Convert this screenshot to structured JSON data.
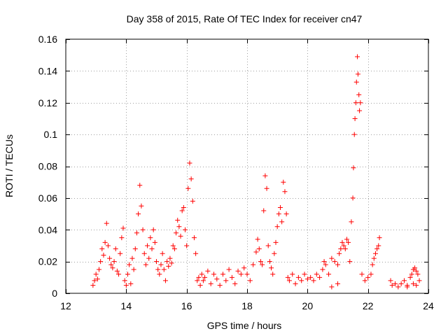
{
  "chart_data": {
    "type": "scatter",
    "title": "Day 358 of 2015, Rate Of TEC Index for receiver cn47",
    "xlabel": "GPS time / hours",
    "ylabel": "ROTI / TECUs",
    "xlim": [
      12,
      24
    ],
    "ylim": [
      0,
      0.16
    ],
    "xticks": [
      12,
      14,
      16,
      18,
      20,
      22,
      24
    ],
    "xtick_labels": [
      "12",
      "14",
      "16",
      "18",
      "20",
      "22",
      "24"
    ],
    "yticks": [
      0,
      0.02,
      0.04,
      0.06,
      0.08,
      0.1,
      0.12,
      0.14,
      0.16
    ],
    "ytick_labels": [
      "0",
      "0.02",
      "0.04",
      "0.06",
      "0.08",
      "0.1",
      "0.12",
      "0.14",
      "0.16"
    ],
    "grid": true,
    "marker": "plus",
    "color": "#ff0000",
    "series": [
      {
        "name": "ROTI",
        "points": [
          [
            12.9,
            0.005
          ],
          [
            12.95,
            0.008
          ],
          [
            13.0,
            0.012
          ],
          [
            13.05,
            0.009
          ],
          [
            13.1,
            0.015
          ],
          [
            13.15,
            0.02
          ],
          [
            13.2,
            0.028
          ],
          [
            13.25,
            0.024
          ],
          [
            13.3,
            0.032
          ],
          [
            13.35,
            0.044
          ],
          [
            13.4,
            0.03
          ],
          [
            13.45,
            0.022
          ],
          [
            13.5,
            0.018
          ],
          [
            13.55,
            0.016
          ],
          [
            13.6,
            0.02
          ],
          [
            13.65,
            0.028
          ],
          [
            13.7,
            0.014
          ],
          [
            13.75,
            0.012
          ],
          [
            13.8,
            0.025
          ],
          [
            13.85,
            0.035
          ],
          [
            13.9,
            0.041
          ],
          [
            13.95,
            0.008
          ],
          [
            14.0,
            0.005
          ],
          [
            14.05,
            0.012
          ],
          [
            14.1,
            0.018
          ],
          [
            14.15,
            0.006
          ],
          [
            14.2,
            0.022
          ],
          [
            14.25,
            0.015
          ],
          [
            14.3,
            0.028
          ],
          [
            14.35,
            0.038
          ],
          [
            14.4,
            0.05
          ],
          [
            14.45,
            0.068
          ],
          [
            14.5,
            0.055
          ],
          [
            14.55,
            0.04
          ],
          [
            14.6,
            0.025
          ],
          [
            14.65,
            0.018
          ],
          [
            14.7,
            0.03
          ],
          [
            14.75,
            0.022
          ],
          [
            14.8,
            0.035
          ],
          [
            14.85,
            0.028
          ],
          [
            14.9,
            0.04
          ],
          [
            14.95,
            0.032
          ],
          [
            15.0,
            0.02
          ],
          [
            15.05,
            0.015
          ],
          [
            15.1,
            0.012
          ],
          [
            15.15,
            0.018
          ],
          [
            15.2,
            0.025
          ],
          [
            15.25,
            0.015
          ],
          [
            15.3,
            0.008
          ],
          [
            15.35,
            0.02
          ],
          [
            15.4,
            0.017
          ],
          [
            15.45,
            0.022
          ],
          [
            15.5,
            0.019
          ],
          [
            15.55,
            0.03
          ],
          [
            15.6,
            0.028
          ],
          [
            15.65,
            0.038
          ],
          [
            15.7,
            0.046
          ],
          [
            15.75,
            0.042
          ],
          [
            15.8,
            0.036
          ],
          [
            15.85,
            0.052
          ],
          [
            15.9,
            0.054
          ],
          [
            15.95,
            0.04
          ],
          [
            16.0,
            0.03
          ],
          [
            16.05,
            0.066
          ],
          [
            16.1,
            0.082
          ],
          [
            16.15,
            0.072
          ],
          [
            16.2,
            0.058
          ],
          [
            16.25,
            0.035
          ],
          [
            16.3,
            0.025
          ],
          [
            16.35,
            0.008
          ],
          [
            16.4,
            0.01
          ],
          [
            16.45,
            0.005
          ],
          [
            16.5,
            0.012
          ],
          [
            16.55,
            0.008
          ],
          [
            16.6,
            0.01
          ],
          [
            16.7,
            0.014
          ],
          [
            16.8,
            0.006
          ],
          [
            16.9,
            0.012
          ],
          [
            17.0,
            0.009
          ],
          [
            17.1,
            0.005
          ],
          [
            17.2,
            0.012
          ],
          [
            17.3,
            0.008
          ],
          [
            17.4,
            0.015
          ],
          [
            17.5,
            0.01
          ],
          [
            17.6,
            0.006
          ],
          [
            17.7,
            0.014
          ],
          [
            17.8,
            0.012
          ],
          [
            17.9,
            0.016
          ],
          [
            18.0,
            0.012
          ],
          [
            18.1,
            0.008
          ],
          [
            18.2,
            0.018
          ],
          [
            18.3,
            0.026
          ],
          [
            18.35,
            0.034
          ],
          [
            18.4,
            0.028
          ],
          [
            18.45,
            0.02
          ],
          [
            18.5,
            0.018
          ],
          [
            18.55,
            0.052
          ],
          [
            18.6,
            0.074
          ],
          [
            18.65,
            0.066
          ],
          [
            18.7,
            0.03
          ],
          [
            18.75,
            0.02
          ],
          [
            18.8,
            0.016
          ],
          [
            18.85,
            0.012
          ],
          [
            18.9,
            0.025
          ],
          [
            18.95,
            0.032
          ],
          [
            19.0,
            0.042
          ],
          [
            19.05,
            0.05
          ],
          [
            19.1,
            0.054
          ],
          [
            19.15,
            0.045
          ],
          [
            19.2,
            0.07
          ],
          [
            19.25,
            0.064
          ],
          [
            19.3,
            0.05
          ],
          [
            19.35,
            0.01
          ],
          [
            19.4,
            0.008
          ],
          [
            19.5,
            0.012
          ],
          [
            19.6,
            0.006
          ],
          [
            19.7,
            0.01
          ],
          [
            19.8,
            0.008
          ],
          [
            19.9,
            0.012
          ],
          [
            20.0,
            0.009
          ],
          [
            20.1,
            0.01
          ],
          [
            20.2,
            0.008
          ],
          [
            20.3,
            0.012
          ],
          [
            20.4,
            0.01
          ],
          [
            20.5,
            0.015
          ],
          [
            20.55,
            0.02
          ],
          [
            20.6,
            0.018
          ],
          [
            20.7,
            0.012
          ],
          [
            20.8,
            0.022
          ],
          [
            20.9,
            0.02
          ],
          [
            21.0,
            0.018
          ],
          [
            21.05,
            0.025
          ],
          [
            21.1,
            0.028
          ],
          [
            21.15,
            0.032
          ],
          [
            21.2,
            0.03
          ],
          [
            21.25,
            0.028
          ],
          [
            21.3,
            0.034
          ],
          [
            21.35,
            0.032
          ],
          [
            21.4,
            0.02
          ],
          [
            21.45,
            0.045
          ],
          [
            21.5,
            0.06
          ],
          [
            21.52,
            0.079
          ],
          [
            21.55,
            0.1
          ],
          [
            21.57,
            0.11
          ],
          [
            21.6,
            0.12
          ],
          [
            21.62,
            0.133
          ],
          [
            21.65,
            0.149
          ],
          [
            21.67,
            0.138
          ],
          [
            21.7,
            0.125
          ],
          [
            21.72,
            0.115
          ],
          [
            21.75,
            0.12
          ],
          [
            21.8,
            0.012
          ],
          [
            21.9,
            0.008
          ],
          [
            22.0,
            0.01
          ],
          [
            22.1,
            0.012
          ],
          [
            22.15,
            0.018
          ],
          [
            22.2,
            0.022
          ],
          [
            22.25,
            0.025
          ],
          [
            22.3,
            0.028
          ],
          [
            22.35,
            0.03
          ],
          [
            22.38,
            0.035
          ],
          [
            22.75,
            0.008
          ],
          [
            22.8,
            0.005
          ],
          [
            22.9,
            0.006
          ],
          [
            23.0,
            0.004
          ],
          [
            23.1,
            0.006
          ],
          [
            23.2,
            0.008
          ],
          [
            23.3,
            0.005
          ],
          [
            23.4,
            0.01
          ],
          [
            23.45,
            0.012
          ],
          [
            23.5,
            0.015
          ],
          [
            23.55,
            0.016
          ],
          [
            23.6,
            0.014
          ],
          [
            23.65,
            0.012
          ],
          [
            23.7,
            0.008
          ],
          [
            23.5,
            0.006
          ],
          [
            23.6,
            0.005
          ],
          [
            23.3,
            0.004
          ],
          [
            20.8,
            0.004
          ],
          [
            21.0,
            0.006
          ]
        ]
      }
    ]
  }
}
